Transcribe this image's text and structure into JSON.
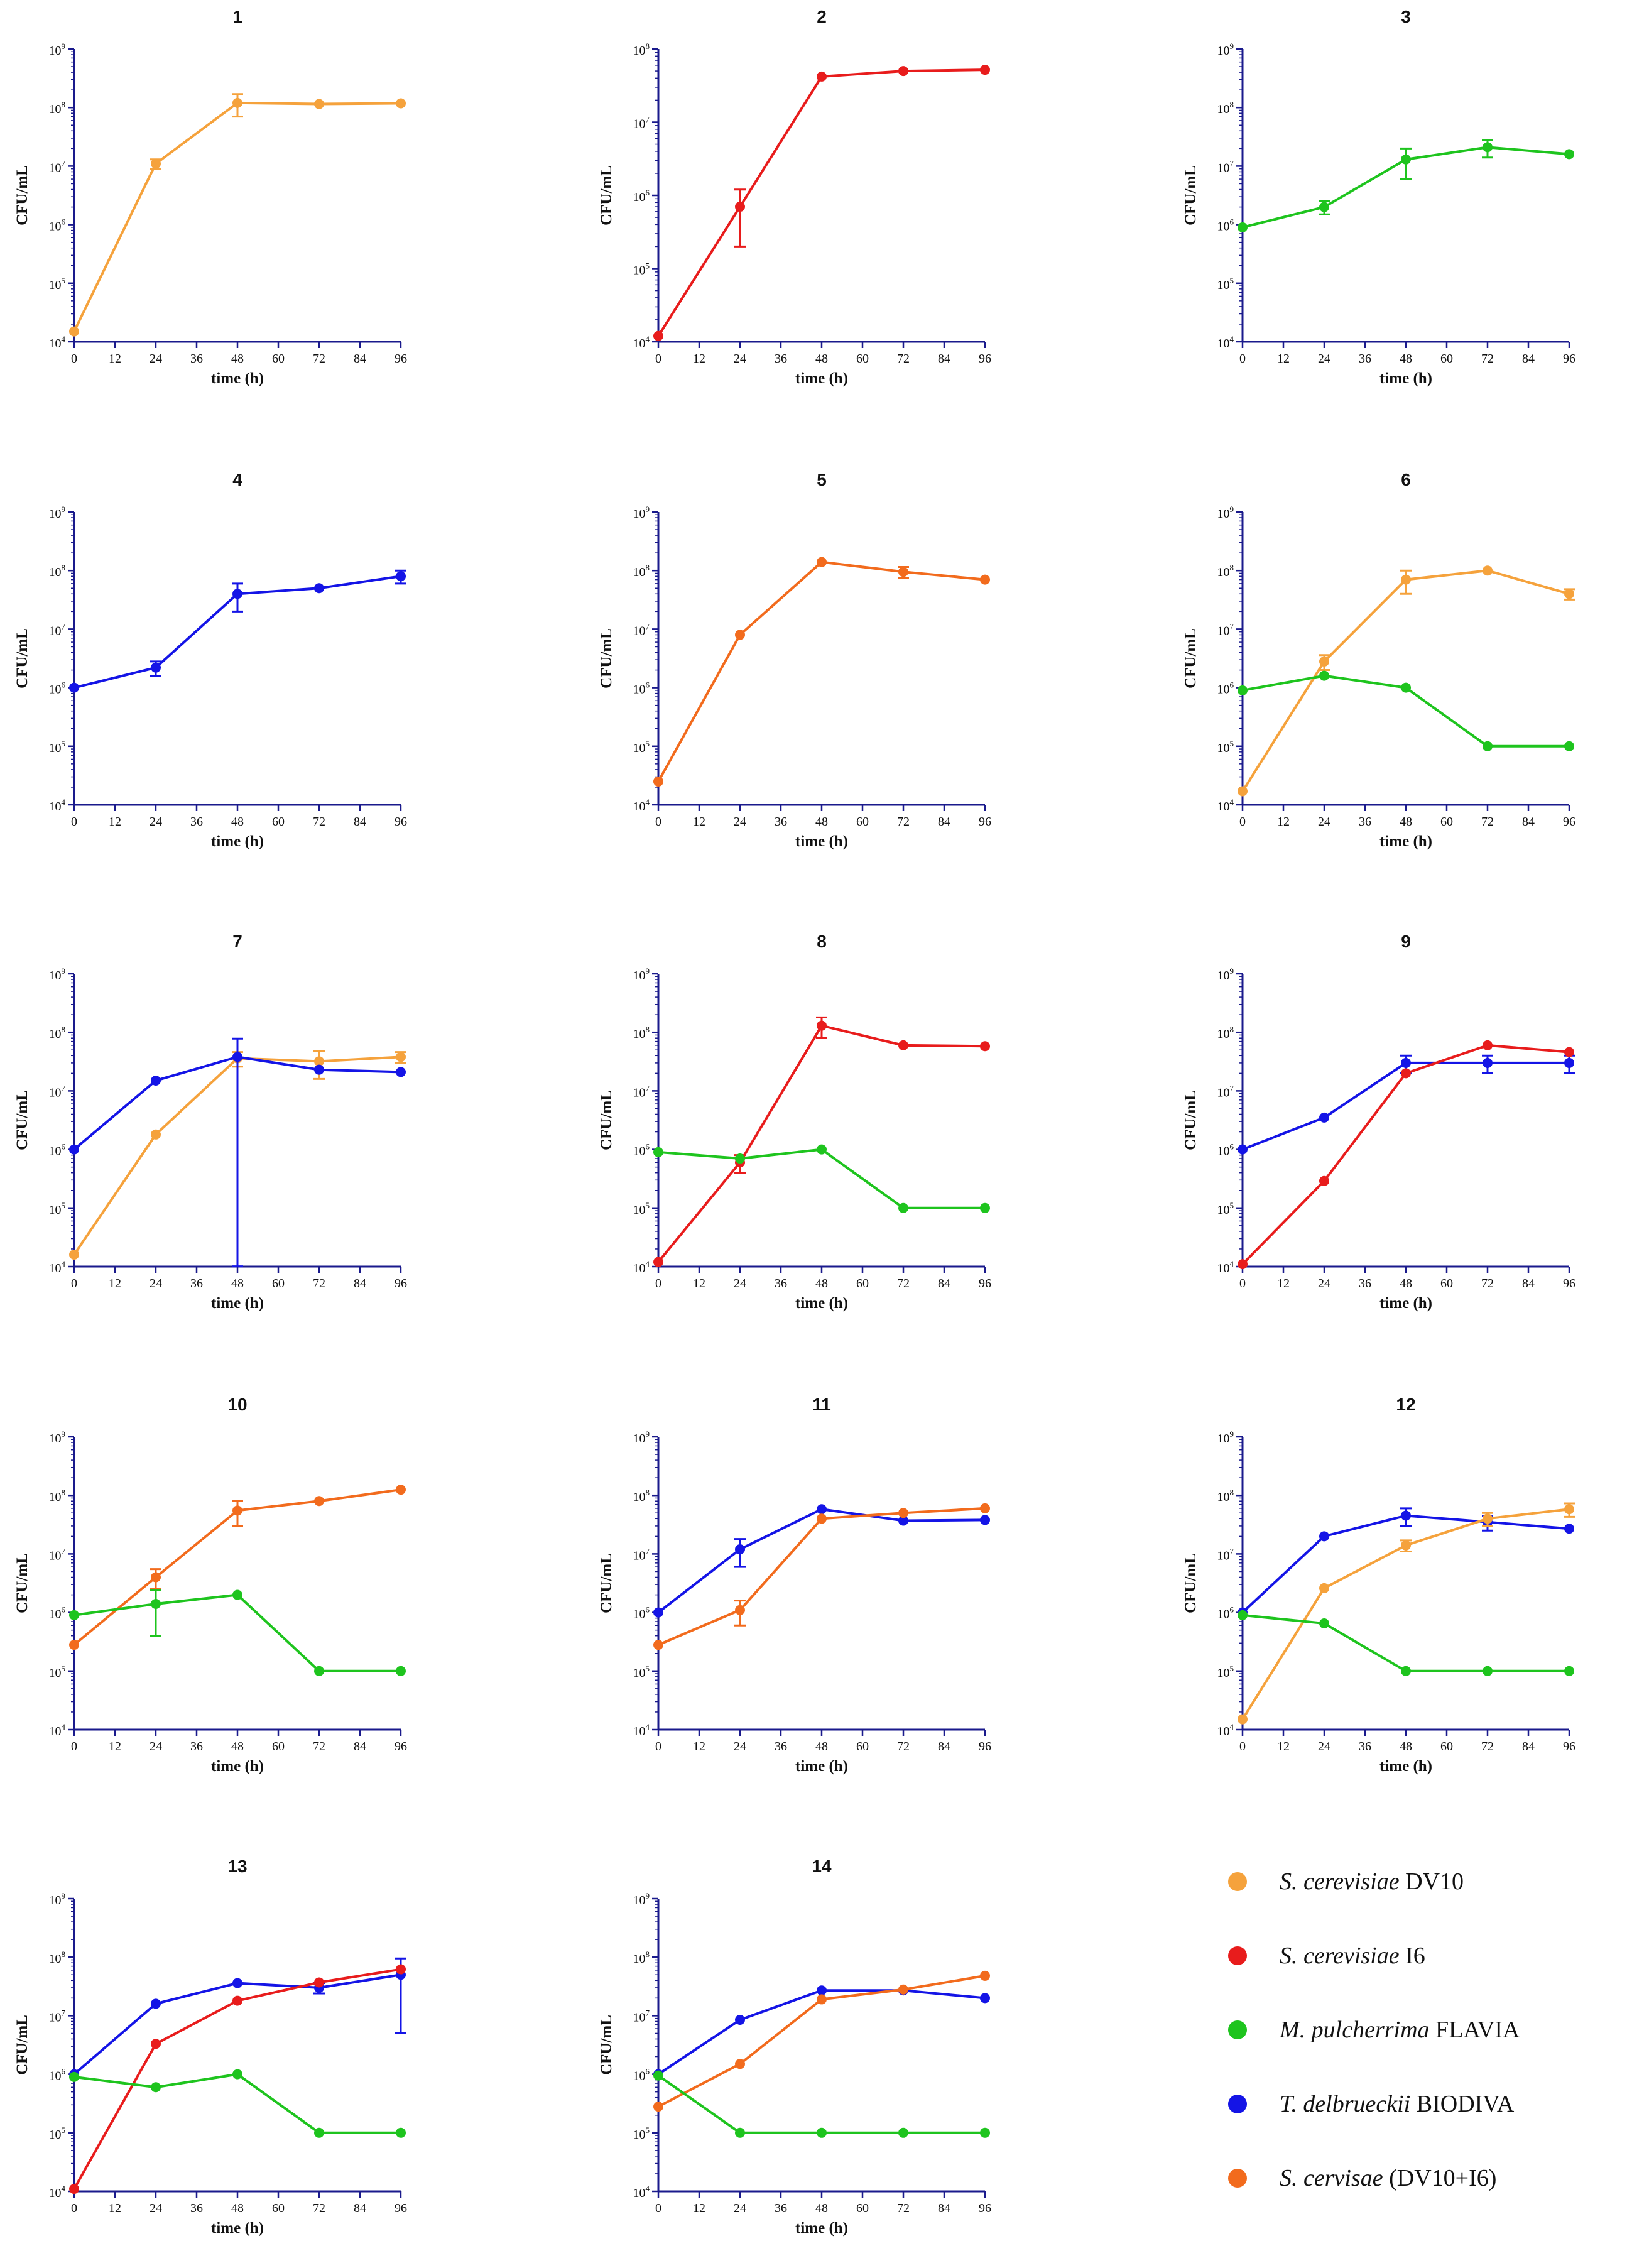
{
  "x_axis_label": "time (h)",
  "y_axis_label": "CFU/mL",
  "x_ticks": [
    0,
    12,
    24,
    36,
    48,
    60,
    72,
    84,
    96
  ],
  "y_tick_exponents": [
    4,
    5,
    6,
    7,
    8,
    9
  ],
  "legend": [
    {
      "key": "dv10",
      "italic": "S. cerevisiae",
      "rest": " DV10",
      "color": "#f5a23c"
    },
    {
      "key": "i6",
      "italic": "S. cerevisiae",
      "rest": " I6",
      "color": "#e81c1c"
    },
    {
      "key": "flavia",
      "italic": "M. pulcherrima",
      "rest": " FLAVIA",
      "color": "#1ec41e"
    },
    {
      "key": "biodiva",
      "italic": "T. delbrueckii",
      "rest": " BIODIVA",
      "color": "#1414e6"
    },
    {
      "key": "mix",
      "italic": "S. cervisae",
      "rest": " (DV10+I6)",
      "color": "#f26b1d"
    }
  ],
  "chart_data": [
    {
      "title": "1",
      "type": "line",
      "ylim": [
        10000,
        1000000000
      ],
      "yscale": "log",
      "xlim": [
        0,
        96
      ],
      "series": [
        {
          "key": "dv10",
          "x": [
            0,
            24,
            48,
            72,
            96
          ],
          "y": [
            15000,
            11000000,
            120000000,
            115000000,
            118000000
          ],
          "err": [
            0,
            2000000,
            50000000,
            0,
            0
          ]
        }
      ]
    },
    {
      "title": "2",
      "type": "line",
      "ylim": [
        10000,
        100000000
      ],
      "yscale": "log",
      "xlim": [
        0,
        96
      ],
      "series": [
        {
          "key": "i6",
          "x": [
            0,
            24,
            48,
            72,
            96
          ],
          "y": [
            12000,
            700000,
            42000000,
            50000000,
            52000000
          ],
          "err": [
            0,
            500000,
            0,
            0,
            0
          ]
        }
      ]
    },
    {
      "title": "3",
      "type": "line",
      "ylim": [
        10000,
        1000000000
      ],
      "yscale": "log",
      "xlim": [
        0,
        96
      ],
      "series": [
        {
          "key": "flavia",
          "x": [
            0,
            24,
            48,
            72,
            96
          ],
          "y": [
            900000,
            2000000,
            13000000,
            21000000,
            16000000
          ],
          "err": [
            0,
            500000,
            7000000,
            7000000,
            0
          ]
        }
      ]
    },
    {
      "title": "4",
      "type": "line",
      "ylim": [
        10000,
        1000000000
      ],
      "yscale": "log",
      "xlim": [
        0,
        96
      ],
      "series": [
        {
          "key": "biodiva",
          "x": [
            0,
            24,
            48,
            72,
            96
          ],
          "y": [
            1000000,
            2200000,
            40000000,
            50000000,
            80000000
          ],
          "err": [
            0,
            600000,
            20000000,
            0,
            20000000
          ]
        }
      ]
    },
    {
      "title": "5",
      "type": "line",
      "ylim": [
        10000,
        1000000000
      ],
      "yscale": "log",
      "xlim": [
        0,
        96
      ],
      "series": [
        {
          "key": "mix",
          "x": [
            0,
            24,
            48,
            72,
            96
          ],
          "y": [
            25000,
            8000000,
            140000000,
            95000000,
            70000000
          ],
          "err": [
            0,
            0,
            0,
            20000000,
            0
          ]
        }
      ]
    },
    {
      "title": "6",
      "type": "line",
      "ylim": [
        10000,
        1000000000
      ],
      "yscale": "log",
      "xlim": [
        0,
        96
      ],
      "series": [
        {
          "key": "dv10",
          "x": [
            0,
            24,
            48,
            72,
            96
          ],
          "y": [
            17000,
            2800000,
            70000000,
            100000000,
            40000000
          ],
          "err": [
            0,
            800000,
            30000000,
            0,
            8000000
          ]
        },
        {
          "key": "flavia",
          "x": [
            0,
            24,
            48,
            72,
            96
          ],
          "y": [
            900000,
            1600000,
            1000000,
            100000,
            100000
          ],
          "err": [
            0,
            0,
            0,
            0,
            0
          ]
        }
      ]
    },
    {
      "title": "7",
      "type": "line",
      "ylim": [
        10000,
        1000000000
      ],
      "yscale": "log",
      "xlim": [
        0,
        96
      ],
      "series": [
        {
          "key": "dv10",
          "x": [
            0,
            24,
            48,
            72,
            96
          ],
          "y": [
            16000,
            1800000,
            36000000,
            32000000,
            38000000
          ],
          "err": [
            0,
            0,
            10000000,
            16000000,
            8000000
          ]
        },
        {
          "key": "biodiva",
          "x": [
            0,
            24,
            48,
            72,
            96
          ],
          "y": [
            1000000,
            15000000,
            38000000,
            23000000,
            21000000
          ],
          "err": [
            0,
            0,
            40000000,
            0,
            0
          ]
        }
      ]
    },
    {
      "title": "8",
      "type": "line",
      "ylim": [
        10000,
        1000000000
      ],
      "yscale": "log",
      "xlim": [
        0,
        96
      ],
      "series": [
        {
          "key": "i6",
          "x": [
            0,
            24,
            48,
            72,
            96
          ],
          "y": [
            12000,
            600000,
            130000000,
            60000000,
            58000000
          ],
          "err": [
            0,
            200000,
            50000000,
            0,
            0
          ]
        },
        {
          "key": "flavia",
          "x": [
            0,
            24,
            48,
            72,
            96
          ],
          "y": [
            900000,
            700000,
            1000000,
            100000,
            100000
          ],
          "err": [
            0,
            0,
            0,
            0,
            0
          ]
        }
      ]
    },
    {
      "title": "9",
      "type": "line",
      "ylim": [
        10000,
        1000000000
      ],
      "yscale": "log",
      "xlim": [
        0,
        96
      ],
      "series": [
        {
          "key": "biodiva",
          "x": [
            0,
            24,
            48,
            72,
            96
          ],
          "y": [
            1000000,
            3500000,
            30000000,
            30000000,
            30000000
          ],
          "err": [
            0,
            0,
            10000000,
            10000000,
            10000000
          ]
        },
        {
          "key": "i6",
          "x": [
            0,
            24,
            48,
            72,
            96
          ],
          "y": [
            11000,
            290000,
            20000000,
            60000000,
            46000000
          ],
          "err": [
            0,
            0,
            0,
            0,
            0
          ]
        }
      ]
    },
    {
      "title": "10",
      "type": "line",
      "ylim": [
        10000,
        1000000000
      ],
      "yscale": "log",
      "xlim": [
        0,
        96
      ],
      "series": [
        {
          "key": "mix",
          "x": [
            0,
            24,
            48,
            72,
            96
          ],
          "y": [
            280000,
            4000000,
            55000000,
            80000000,
            125000000
          ],
          "err": [
            0,
            1500000,
            25000000,
            0,
            0
          ]
        },
        {
          "key": "flavia",
          "x": [
            0,
            24,
            48,
            72,
            96
          ],
          "y": [
            900000,
            1400000,
            2000000,
            100000,
            100000
          ],
          "err": [
            0,
            1000000,
            0,
            0,
            0
          ]
        }
      ]
    },
    {
      "title": "11",
      "type": "line",
      "ylim": [
        10000,
        1000000000
      ],
      "yscale": "log",
      "xlim": [
        0,
        96
      ],
      "series": [
        {
          "key": "biodiva",
          "x": [
            0,
            24,
            48,
            72,
            96
          ],
          "y": [
            1000000,
            12000000,
            58000000,
            37000000,
            38000000
          ],
          "err": [
            0,
            6000000,
            0,
            0,
            0
          ]
        },
        {
          "key": "mix",
          "x": [
            0,
            24,
            48,
            72,
            96
          ],
          "y": [
            280000,
            1100000,
            40000000,
            50000000,
            60000000
          ],
          "err": [
            0,
            500000,
            0,
            0,
            0
          ]
        }
      ]
    },
    {
      "title": "12",
      "type": "line",
      "ylim": [
        10000,
        1000000000
      ],
      "yscale": "log",
      "xlim": [
        0,
        96
      ],
      "series": [
        {
          "key": "biodiva",
          "x": [
            0,
            24,
            48,
            72,
            96
          ],
          "y": [
            1000000,
            20000000,
            45000000,
            35000000,
            27000000
          ],
          "err": [
            0,
            0,
            15000000,
            10000000,
            0
          ]
        },
        {
          "key": "dv10",
          "x": [
            0,
            24,
            48,
            72,
            96
          ],
          "y": [
            15000,
            2600000,
            14000000,
            40000000,
            58000000
          ],
          "err": [
            0,
            0,
            3000000,
            10000000,
            15000000
          ]
        },
        {
          "key": "flavia",
          "x": [
            0,
            24,
            48,
            72,
            96
          ],
          "y": [
            900000,
            650000,
            100000,
            100000,
            100000
          ],
          "err": [
            0,
            0,
            0,
            0,
            0
          ]
        }
      ]
    },
    {
      "title": "13",
      "type": "line",
      "ylim": [
        10000,
        1000000000
      ],
      "yscale": "log",
      "xlim": [
        0,
        96
      ],
      "series": [
        {
          "key": "biodiva",
          "x": [
            0,
            24,
            48,
            72,
            96
          ],
          "y": [
            1000000,
            16000000,
            36000000,
            30000000,
            50000000
          ],
          "err": [
            0,
            0,
            0,
            6000000,
            45000000
          ]
        },
        {
          "key": "i6",
          "x": [
            0,
            24,
            48,
            72,
            96
          ],
          "y": [
            11000,
            3300000,
            18000000,
            37000000,
            62000000
          ],
          "err": [
            0,
            0,
            0,
            0,
            0
          ]
        },
        {
          "key": "flavia",
          "x": [
            0,
            24,
            48,
            72,
            96
          ],
          "y": [
            900000,
            600000,
            1000000,
            100000,
            100000
          ],
          "err": [
            0,
            0,
            0,
            0,
            0
          ]
        }
      ]
    },
    {
      "title": "14",
      "type": "line",
      "ylim": [
        10000,
        1000000000
      ],
      "yscale": "log",
      "xlim": [
        0,
        96
      ],
      "series": [
        {
          "key": "biodiva",
          "x": [
            0,
            24,
            48,
            72,
            96
          ],
          "y": [
            1000000,
            8500000,
            27000000,
            27000000,
            20000000
          ],
          "err": [
            0,
            0,
            0,
            0,
            0
          ]
        },
        {
          "key": "mix",
          "x": [
            0,
            24,
            48,
            72,
            96
          ],
          "y": [
            280000,
            1500000,
            19000000,
            28000000,
            48000000
          ],
          "err": [
            0,
            0,
            0,
            0,
            0
          ]
        },
        {
          "key": "flavia",
          "x": [
            0,
            24,
            48,
            72,
            96
          ],
          "y": [
            950000,
            100000,
            100000,
            100000,
            100000
          ],
          "err": [
            0,
            0,
            0,
            0,
            0
          ]
        }
      ]
    }
  ]
}
